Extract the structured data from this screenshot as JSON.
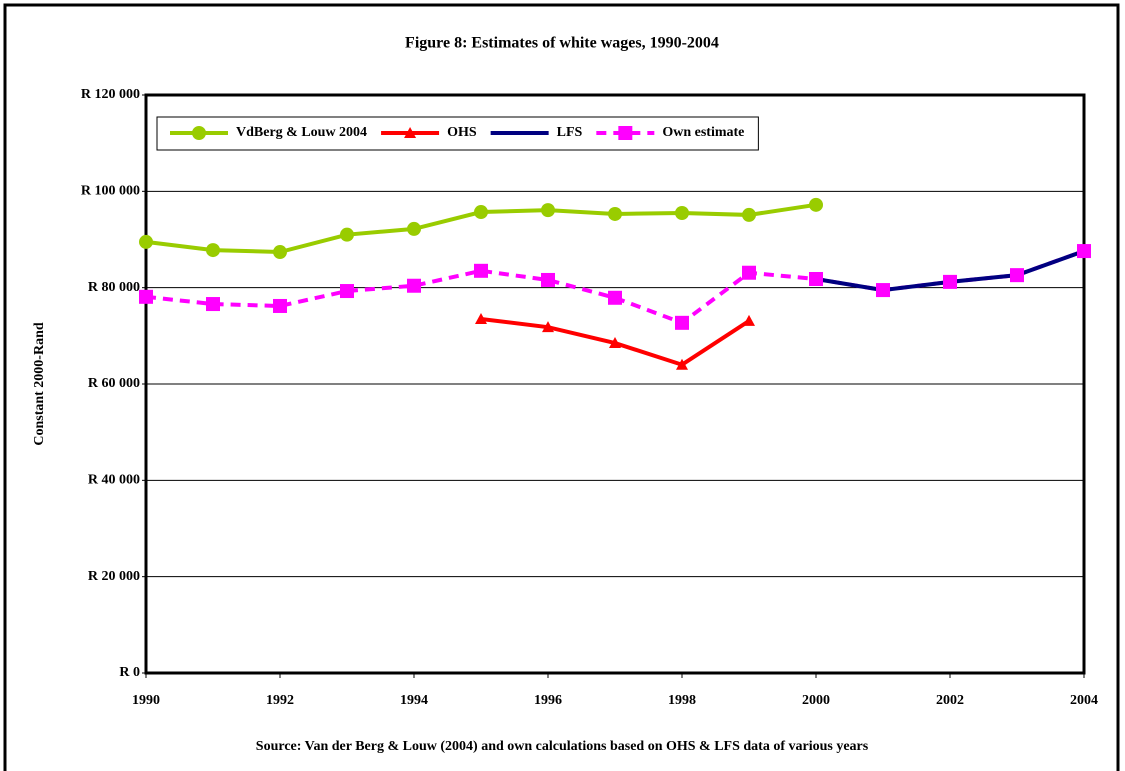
{
  "chart_data": {
    "type": "line",
    "title": "Figure 8: Estimates of white wages, 1990-2004",
    "y_label": "Constant 2000-Rand",
    "source": "Source: Van der Berg & Louw (2004) and own calculations based on OHS & LFS data of various years",
    "x": [
      1990,
      1991,
      1992,
      1993,
      1994,
      1995,
      1996,
      1997,
      1998,
      1999,
      2000,
      2001,
      2002,
      2003,
      2004
    ],
    "xlim": [
      1990,
      2004
    ],
    "xticks": [
      1990,
      1992,
      1994,
      1996,
      1998,
      2000,
      2002,
      2004
    ],
    "ylim": [
      0,
      120000
    ],
    "yticks": [
      {
        "value": 0,
        "label": "R 0"
      },
      {
        "value": 20000,
        "label": "R 20 000"
      },
      {
        "value": 40000,
        "label": "R 40 000"
      },
      {
        "value": 60000,
        "label": "R 60 000"
      },
      {
        "value": 80000,
        "label": "R 80 000"
      },
      {
        "value": 100000,
        "label": "R 100 000"
      },
      {
        "value": 120000,
        "label": "R 120 000"
      }
    ],
    "grid": true,
    "legend": "top-left",
    "series": [
      {
        "name": "VdBerg & Louw 2004",
        "color": "#99cc00",
        "marker": "circle",
        "dashed": false,
        "values": [
          89500,
          87800,
          87400,
          91000,
          92200,
          95700,
          96100,
          95300,
          95500,
          95100,
          97200,
          null,
          null,
          null,
          null
        ]
      },
      {
        "name": "OHS",
        "color": "#ff0000",
        "marker": "triangle",
        "dashed": false,
        "values": [
          null,
          null,
          null,
          null,
          null,
          73500,
          71800,
          68500,
          64000,
          73100,
          null,
          null,
          null,
          null,
          null
        ]
      },
      {
        "name": "LFS",
        "color": "#000080",
        "marker": "dash",
        "dashed": false,
        "values": [
          null,
          null,
          null,
          null,
          null,
          null,
          null,
          null,
          null,
          null,
          81800,
          79500,
          81200,
          82600,
          87600
        ]
      },
      {
        "name": "Own estimate",
        "color": "#ff00ff",
        "marker": "square",
        "dashed": true,
        "values": [
          78100,
          76600,
          76200,
          79300,
          80400,
          83500,
          81600,
          77900,
          72700,
          83100,
          81800,
          79500,
          81200,
          82600,
          87600
        ]
      }
    ]
  }
}
